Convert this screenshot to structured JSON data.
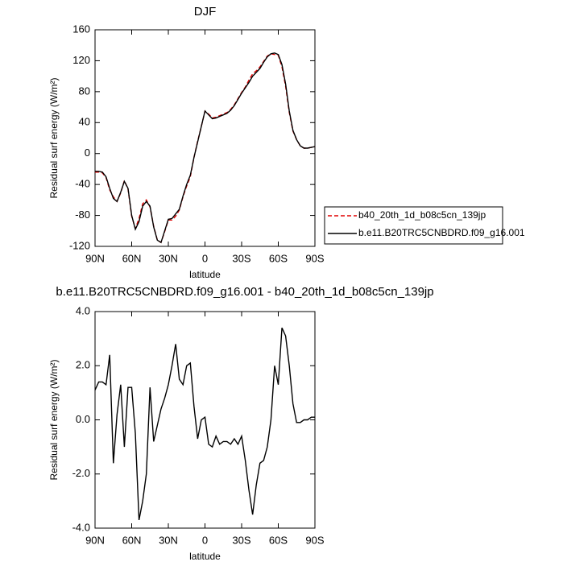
{
  "chart_data": [
    {
      "type": "line",
      "title": "DJF",
      "xlabel": "latitude",
      "ylabel": "Residual surf energy (W/m²)",
      "xlim": [
        90,
        -90
      ],
      "xticks": [
        {
          "value": 90,
          "label": "90N"
        },
        {
          "value": 60,
          "label": "60N"
        },
        {
          "value": 30,
          "label": "30N"
        },
        0,
        {
          "value": -30,
          "label": "30S"
        },
        {
          "value": -60,
          "label": "60S"
        },
        {
          "value": -90,
          "label": "90S"
        }
      ],
      "ylim": [
        -120,
        160
      ],
      "yticks": [
        -120,
        -80,
        -40,
        0,
        40,
        80,
        120,
        160
      ],
      "legend": "right",
      "x": [
        90,
        87,
        84,
        81,
        78,
        75,
        72,
        69,
        66,
        63,
        60,
        57,
        54,
        51,
        48,
        45,
        42,
        39,
        36,
        33,
        30,
        27,
        24,
        21,
        18,
        15,
        12,
        9,
        6,
        3,
        0,
        -3,
        -6,
        -9,
        -12,
        -15,
        -18,
        -21,
        -24,
        -27,
        -30,
        -33,
        -36,
        -39,
        -42,
        -45,
        -48,
        -51,
        -54,
        -57,
        -60,
        -63,
        -66,
        -69,
        -72,
        -75,
        -78,
        -81,
        -84,
        -87,
        -90
      ],
      "series": [
        {
          "name": "b40_20th_1d_b08c5cn_139jp",
          "color": "#e00000",
          "dash": "dashed",
          "values": [
            -24,
            -24,
            -25,
            -31,
            -47,
            -56,
            -62,
            -51,
            -35,
            -46,
            -81,
            -97,
            -84,
            -65,
            -60,
            -69,
            -94,
            -112,
            -115,
            -101,
            -86,
            -86,
            -81,
            -73,
            -56,
            -42,
            -30,
            -5,
            16,
            35,
            55,
            51,
            46,
            47,
            49,
            51,
            53,
            57,
            63,
            71,
            79,
            86,
            95,
            103,
            107,
            112,
            119,
            126,
            129,
            128,
            127,
            112,
            87,
            53,
            29,
            18,
            10,
            7,
            7,
            8,
            9
          ]
        },
        {
          "name": "b.e11.B20TRC5CNBDRD.f09_g16.001",
          "color": "#000000",
          "dash": "solid",
          "values": [
            -23,
            -23,
            -24,
            -30,
            -45,
            -58,
            -62,
            -50,
            -36,
            -45,
            -80,
            -98,
            -88,
            -68,
            -62,
            -68,
            -95,
            -112,
            -115,
            -100,
            -85,
            -84,
            -78,
            -72,
            -55,
            -40,
            -28,
            -5,
            15,
            35,
            55,
            50,
            45,
            46,
            48,
            50,
            52,
            56,
            62,
            70,
            78,
            85,
            92,
            100,
            105,
            110,
            118,
            125,
            129,
            130,
            128,
            115,
            90,
            55,
            30,
            18,
            10,
            7,
            7,
            8,
            9
          ]
        }
      ]
    },
    {
      "type": "line",
      "title": "b.e11.B20TRC5CNBDRD.f09_g16.001 - b40_20th_1d_b08c5cn_139jp",
      "xlabel": "latitude",
      "ylabel": "Residual surf energy (W/m²)",
      "xlim": [
        90,
        -90
      ],
      "xticks": [
        {
          "value": 90,
          "label": "90N"
        },
        {
          "value": 60,
          "label": "60N"
        },
        {
          "value": 30,
          "label": "30N"
        },
        0,
        {
          "value": -30,
          "label": "30S"
        },
        {
          "value": -60,
          "label": "60S"
        },
        {
          "value": -90,
          "label": "90S"
        }
      ],
      "ylim": [
        -4,
        4
      ],
      "yticks": [
        {
          "value": -4,
          "label": "-4.0"
        },
        {
          "value": -2,
          "label": "-2.0"
        },
        {
          "value": 0,
          "label": "0.0"
        },
        {
          "value": 2,
          "label": "2.0"
        },
        {
          "value": 4,
          "label": "4.0"
        }
      ],
      "x": [
        90,
        87,
        84,
        81,
        78,
        75,
        72,
        69,
        66,
        63,
        60,
        57,
        54,
        51,
        48,
        45,
        42,
        39,
        36,
        33,
        30,
        27,
        24,
        21,
        18,
        15,
        12,
        9,
        6,
        3,
        0,
        -3,
        -6,
        -9,
        -12,
        -15,
        -18,
        -21,
        -24,
        -27,
        -30,
        -33,
        -36,
        -39,
        -42,
        -45,
        -48,
        -51,
        -54,
        -57,
        -60,
        -63,
        -66,
        -69,
        -72,
        -75,
        -78,
        -81,
        -84,
        -87,
        -90
      ],
      "series": [
        {
          "color": "#000000",
          "dash": "solid",
          "values": [
            1.1,
            1.4,
            1.4,
            1.3,
            2.4,
            -1.6,
            0.2,
            1.3,
            -1.0,
            1.2,
            1.2,
            -0.5,
            -3.7,
            -3.0,
            -2.0,
            1.2,
            -0.8,
            -0.2,
            0.4,
            0.8,
            1.3,
            2.0,
            2.8,
            1.5,
            1.3,
            2.0,
            2.1,
            0.5,
            -0.7,
            0.0,
            0.1,
            -0.9,
            -1.0,
            -0.6,
            -0.9,
            -0.8,
            -0.8,
            -0.9,
            -0.7,
            -0.9,
            -0.6,
            -1.5,
            -2.6,
            -3.5,
            -2.4,
            -1.6,
            -1.5,
            -1.0,
            0.0,
            2.0,
            1.3,
            3.4,
            3.1,
            2.0,
            0.6,
            -0.1,
            -0.1,
            0.0,
            0.0,
            0.1,
            0.1
          ]
        }
      ]
    }
  ]
}
